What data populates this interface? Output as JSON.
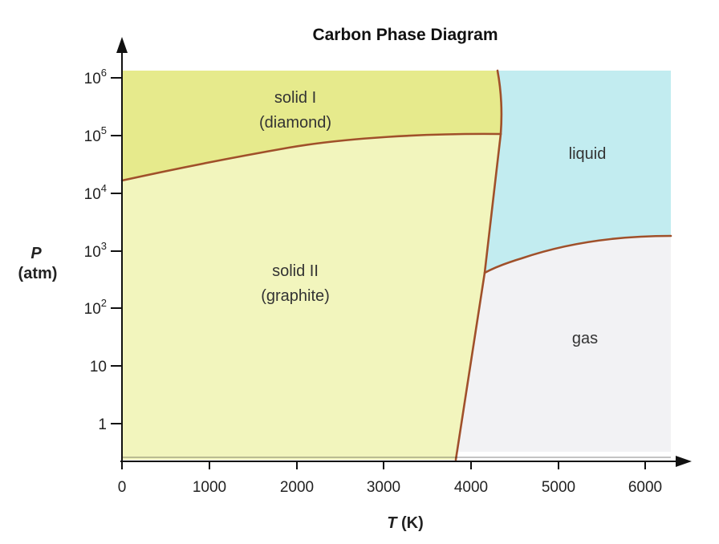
{
  "title": "Carbon Phase Diagram",
  "x_axis": {
    "label_var": "T",
    "label_unit": " (K)",
    "ticks": [
      "0",
      "1000",
      "2000",
      "3000",
      "4000",
      "5000",
      "6000"
    ],
    "range": [
      0,
      6300
    ]
  },
  "y_axis": {
    "label_var": "P",
    "label_unit": "(atm)",
    "ticks": [
      {
        "base": "1",
        "exp": ""
      },
      {
        "base": "10",
        "exp": ""
      },
      {
        "base": "10",
        "exp": "2"
      },
      {
        "base": "10",
        "exp": "3"
      },
      {
        "base": "10",
        "exp": "4"
      },
      {
        "base": "10",
        "exp": "5"
      },
      {
        "base": "10",
        "exp": "6"
      }
    ],
    "scale": "log"
  },
  "regions": {
    "diamond": {
      "line1": "solid I",
      "line2": "(diamond)",
      "color": "#e6ea8c"
    },
    "graphite": {
      "line1": "solid II",
      "line2": "(graphite)",
      "color": "#f2f5bd"
    },
    "liquid": {
      "line1": "liquid",
      "color": "#c2ecf0"
    },
    "gas": {
      "line1": "gas",
      "color": "#f2f2f4"
    }
  },
  "colors": {
    "boundary": "#a0502a",
    "axis": "#111111"
  }
}
